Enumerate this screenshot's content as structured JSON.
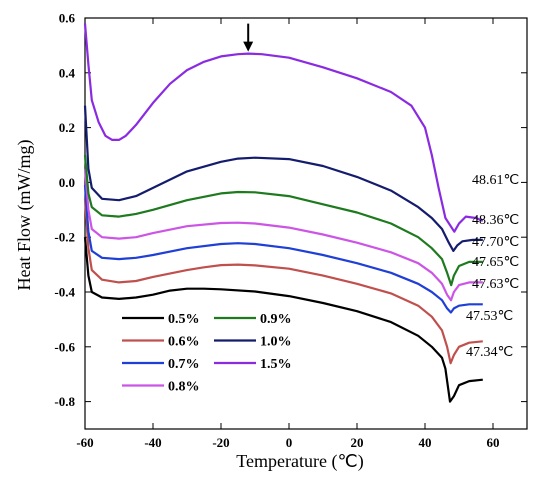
{
  "chart_data": {
    "type": "line",
    "xlabel": "Temperature (℃)",
    "ylabel": "Heat Flow (mW/mg)",
    "xlim": [
      -60,
      70
    ],
    "ylim": [
      -0.9,
      0.6
    ],
    "xticks": [
      "-60",
      "-40",
      "-20",
      "0",
      "20",
      "40",
      "60"
    ],
    "yticks": [
      "0.6",
      "0.4",
      "0.2",
      "0.0",
      "-0.2",
      "-0.4",
      "-0.6",
      "-0.8"
    ],
    "xtick_values": [
      -60,
      -40,
      -20,
      0,
      20,
      40,
      60
    ],
    "ytick_values": [
      0.6,
      0.4,
      0.2,
      0.0,
      -0.2,
      -0.4,
      -0.6,
      -0.8
    ],
    "legend_position": "bottom-left",
    "annotation": {
      "type": "arrow",
      "x": -12,
      "y": 0.47
    },
    "series": [
      {
        "name": "0.5%",
        "color": "#000000",
        "peak_label": "47.34℃",
        "points": [
          [
            -60,
            -0.2
          ],
          [
            -59,
            -0.34
          ],
          [
            -58,
            -0.4
          ],
          [
            -55,
            -0.42
          ],
          [
            -50,
            -0.425
          ],
          [
            -45,
            -0.42
          ],
          [
            -40,
            -0.41
          ],
          [
            -35,
            -0.395
          ],
          [
            -30,
            -0.388
          ],
          [
            -25,
            -0.388
          ],
          [
            -20,
            -0.39
          ],
          [
            -10,
            -0.398
          ],
          [
            0,
            -0.415
          ],
          [
            10,
            -0.44
          ],
          [
            20,
            -0.47
          ],
          [
            30,
            -0.51
          ],
          [
            38,
            -0.56
          ],
          [
            42,
            -0.6
          ],
          [
            45,
            -0.64
          ],
          [
            46,
            -0.68
          ],
          [
            47.34,
            -0.8
          ],
          [
            48.5,
            -0.78
          ],
          [
            50,
            -0.74
          ],
          [
            53,
            -0.725
          ],
          [
            57,
            -0.72
          ]
        ]
      },
      {
        "name": "0.6%",
        "color": "#c0504d",
        "peak_label": "47.53℃",
        "points": [
          [
            -60,
            -0.06
          ],
          [
            -59,
            -0.24
          ],
          [
            -58,
            -0.32
          ],
          [
            -55,
            -0.355
          ],
          [
            -50,
            -0.365
          ],
          [
            -45,
            -0.36
          ],
          [
            -40,
            -0.345
          ],
          [
            -30,
            -0.32
          ],
          [
            -25,
            -0.31
          ],
          [
            -20,
            -0.302
          ],
          [
            -15,
            -0.3
          ],
          [
            -10,
            -0.303
          ],
          [
            0,
            -0.315
          ],
          [
            10,
            -0.34
          ],
          [
            20,
            -0.37
          ],
          [
            30,
            -0.405
          ],
          [
            38,
            -0.45
          ],
          [
            42,
            -0.49
          ],
          [
            45,
            -0.54
          ],
          [
            46.5,
            -0.6
          ],
          [
            47.53,
            -0.66
          ],
          [
            48.5,
            -0.63
          ],
          [
            50,
            -0.6
          ],
          [
            53,
            -0.585
          ],
          [
            57,
            -0.58
          ]
        ]
      },
      {
        "name": "0.7%",
        "color": "#1f3fd6",
        "peak_label": "47.63℃",
        "points": [
          [
            -60,
            -0.01
          ],
          [
            -59,
            -0.18
          ],
          [
            -58,
            -0.25
          ],
          [
            -55,
            -0.275
          ],
          [
            -50,
            -0.28
          ],
          [
            -45,
            -0.275
          ],
          [
            -40,
            -0.265
          ],
          [
            -30,
            -0.24
          ],
          [
            -20,
            -0.225
          ],
          [
            -15,
            -0.222
          ],
          [
            -10,
            -0.225
          ],
          [
            0,
            -0.24
          ],
          [
            10,
            -0.265
          ],
          [
            20,
            -0.295
          ],
          [
            30,
            -0.33
          ],
          [
            38,
            -0.37
          ],
          [
            42,
            -0.4
          ],
          [
            45,
            -0.43
          ],
          [
            46.5,
            -0.46
          ],
          [
            47.63,
            -0.475
          ],
          [
            48.5,
            -0.46
          ],
          [
            50,
            -0.45
          ],
          [
            53,
            -0.445
          ],
          [
            57,
            -0.445
          ]
        ]
      },
      {
        "name": "0.8%",
        "color": "#cc55e6",
        "peak_label": "47.65℃",
        "points": [
          [
            -60,
            0.05
          ],
          [
            -59,
            -0.1
          ],
          [
            -58,
            -0.17
          ],
          [
            -55,
            -0.2
          ],
          [
            -50,
            -0.205
          ],
          [
            -45,
            -0.2
          ],
          [
            -40,
            -0.185
          ],
          [
            -30,
            -0.16
          ],
          [
            -20,
            -0.148
          ],
          [
            -15,
            -0.147
          ],
          [
            -10,
            -0.15
          ],
          [
            0,
            -0.165
          ],
          [
            10,
            -0.19
          ],
          [
            20,
            -0.22
          ],
          [
            30,
            -0.255
          ],
          [
            38,
            -0.295
          ],
          [
            42,
            -0.33
          ],
          [
            45,
            -0.37
          ],
          [
            46.5,
            -0.41
          ],
          [
            47.65,
            -0.43
          ],
          [
            48.5,
            -0.4
          ],
          [
            50,
            -0.375
          ],
          [
            53,
            -0.365
          ],
          [
            57,
            -0.365
          ]
        ]
      },
      {
        "name": "0.9%",
        "color": "#1e7a1e",
        "peak_label": "47.70℃",
        "points": [
          [
            -60,
            0.1
          ],
          [
            -59,
            -0.04
          ],
          [
            -58,
            -0.09
          ],
          [
            -55,
            -0.12
          ],
          [
            -50,
            -0.125
          ],
          [
            -45,
            -0.115
          ],
          [
            -40,
            -0.1
          ],
          [
            -30,
            -0.065
          ],
          [
            -20,
            -0.04
          ],
          [
            -15,
            -0.035
          ],
          [
            -10,
            -0.036
          ],
          [
            0,
            -0.05
          ],
          [
            10,
            -0.08
          ],
          [
            20,
            -0.11
          ],
          [
            30,
            -0.15
          ],
          [
            38,
            -0.2
          ],
          [
            42,
            -0.24
          ],
          [
            45,
            -0.28
          ],
          [
            46.5,
            -0.33
          ],
          [
            47.7,
            -0.375
          ],
          [
            48.5,
            -0.34
          ],
          [
            50,
            -0.305
          ],
          [
            53,
            -0.29
          ],
          [
            57,
            -0.29
          ]
        ]
      },
      {
        "name": "1.0%",
        "color": "#141c6e",
        "peak_label": "48.36℃",
        "points": [
          [
            -60,
            0.28
          ],
          [
            -59,
            0.05
          ],
          [
            -58,
            -0.02
          ],
          [
            -55,
            -0.06
          ],
          [
            -50,
            -0.065
          ],
          [
            -45,
            -0.05
          ],
          [
            -40,
            -0.02
          ],
          [
            -30,
            0.04
          ],
          [
            -20,
            0.075
          ],
          [
            -15,
            0.087
          ],
          [
            -10,
            0.09
          ],
          [
            0,
            0.085
          ],
          [
            10,
            0.06
          ],
          [
            20,
            0.02
          ],
          [
            30,
            -0.03
          ],
          [
            38,
            -0.09
          ],
          [
            42,
            -0.13
          ],
          [
            45,
            -0.17
          ],
          [
            47,
            -0.22
          ],
          [
            48.36,
            -0.25
          ],
          [
            49.5,
            -0.23
          ],
          [
            51,
            -0.215
          ],
          [
            54,
            -0.21
          ],
          [
            57,
            -0.21
          ]
        ]
      },
      {
        "name": "1.5%",
        "color": "#8a2be2",
        "peak_label": "48.61℃",
        "points": [
          [
            -60,
            0.58
          ],
          [
            -59,
            0.43
          ],
          [
            -58,
            0.3
          ],
          [
            -56,
            0.22
          ],
          [
            -54,
            0.17
          ],
          [
            -52,
            0.155
          ],
          [
            -50,
            0.155
          ],
          [
            -48,
            0.17
          ],
          [
            -45,
            0.21
          ],
          [
            -40,
            0.29
          ],
          [
            -35,
            0.36
          ],
          [
            -30,
            0.41
          ],
          [
            -25,
            0.44
          ],
          [
            -20,
            0.46
          ],
          [
            -15,
            0.468
          ],
          [
            -12,
            0.47
          ],
          [
            -8,
            0.468
          ],
          [
            0,
            0.455
          ],
          [
            10,
            0.42
          ],
          [
            20,
            0.38
          ],
          [
            30,
            0.33
          ],
          [
            36,
            0.28
          ],
          [
            40,
            0.2
          ],
          [
            42,
            0.1
          ],
          [
            44,
            -0.02
          ],
          [
            46,
            -0.13
          ],
          [
            48.61,
            -0.18
          ],
          [
            50,
            -0.15
          ],
          [
            52,
            -0.125
          ],
          [
            55,
            -0.13
          ],
          [
            57,
            -0.14
          ]
        ]
      }
    ]
  }
}
